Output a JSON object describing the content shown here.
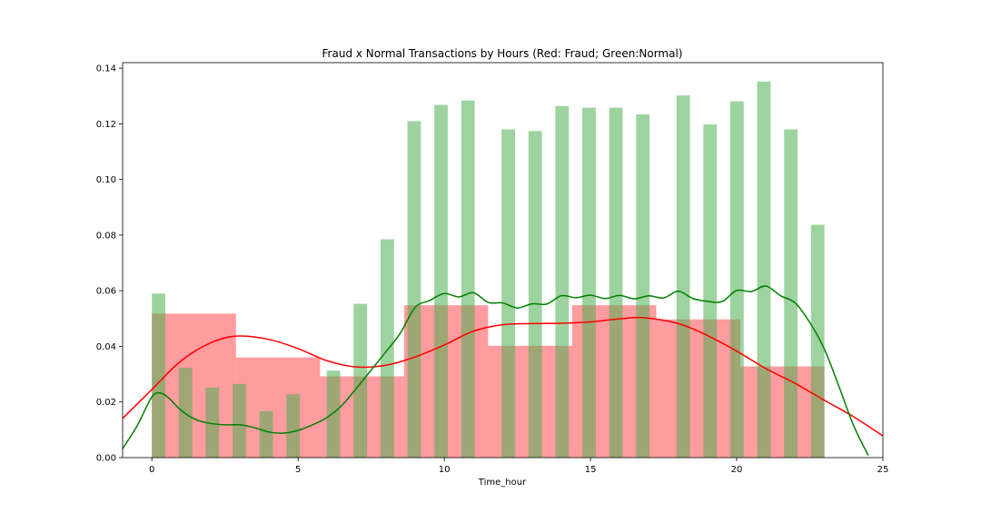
{
  "chart_data": {
    "type": "bar",
    "title": "Fraud x Normal Transactions by Hours (Red: Fraud; Green:Normal)",
    "xlabel": "Time_hour",
    "ylabel": "",
    "xlim": [
      -1,
      25
    ],
    "ylim": [
      0,
      0.142
    ],
    "x_ticks": [
      0,
      5,
      10,
      15,
      20,
      25
    ],
    "x_tick_labels": [
      "0",
      "5",
      "10",
      "15",
      "20",
      "25"
    ],
    "y_ticks": [
      0,
      0.02,
      0.04,
      0.06,
      0.08,
      0.1,
      0.12,
      0.14
    ],
    "y_tick_labels": [
      "0.00",
      "0.02",
      "0.04",
      "0.06",
      "0.08",
      "0.10",
      "0.12",
      "0.14"
    ],
    "grid": false,
    "colors": {
      "fraud_hist": "#ff5a5f",
      "fraud_kde": "#ff0000",
      "normal_hist": "#4caf50",
      "normal_kde": "#008000"
    },
    "series": [
      {
        "kind": "histogram",
        "bins": [
          {
            "x0": 0,
            "x1": 2.875,
            "value": 0.0518
          },
          {
            "x0": 2.875,
            "x1": 5.75,
            "value": 0.036
          },
          {
            "x0": 5.75,
            "x1": 8.625,
            "value": 0.0292
          },
          {
            "x0": 8.625,
            "x1": 11.5,
            "value": 0.0548
          },
          {
            "x0": 11.5,
            "x1": 14.375,
            "value": 0.0402
          },
          {
            "x0": 14.375,
            "x1": 17.25,
            "value": 0.0548
          },
          {
            "x0": 17.25,
            "x1": 20.125,
            "value": 0.0497
          },
          {
            "x0": 20.125,
            "x1": 23,
            "value": 0.0328
          }
        ]
      },
      {
        "kind": "kde",
        "x": [
          -1,
          0,
          1,
          2,
          2.9,
          4,
          5,
          6,
          7,
          8,
          9,
          10,
          11,
          12,
          13,
          14,
          15,
          16,
          16.8,
          18,
          19,
          20,
          21,
          22,
          23,
          24,
          25
        ],
        "y": [
          0.0141,
          0.0245,
          0.0348,
          0.0412,
          0.0437,
          0.0425,
          0.0392,
          0.0348,
          0.0326,
          0.0332,
          0.0362,
          0.0405,
          0.0455,
          0.0478,
          0.0482,
          0.0483,
          0.0488,
          0.0499,
          0.0503,
          0.0482,
          0.0439,
          0.0383,
          0.032,
          0.0267,
          0.0206,
          0.0147,
          0.0078
        ]
      },
      {
        "kind": "histogram",
        "bins": [
          {
            "x0": 0,
            "x1": 0.46,
            "value": 0.059
          },
          {
            "x0": 0.92,
            "x1": 1.38,
            "value": 0.0323
          },
          {
            "x0": 1.84,
            "x1": 2.3,
            "value": 0.0252
          },
          {
            "x0": 2.76,
            "x1": 3.22,
            "value": 0.0265
          },
          {
            "x0": 3.68,
            "x1": 4.14,
            "value": 0.0167
          },
          {
            "x0": 4.6,
            "x1": 5.06,
            "value": 0.0228
          },
          {
            "x0": 5.98,
            "x1": 6.44,
            "value": 0.0313
          },
          {
            "x0": 6.9,
            "x1": 7.36,
            "value": 0.0553
          },
          {
            "x0": 7.82,
            "x1": 8.28,
            "value": 0.0785
          },
          {
            "x0": 8.74,
            "x1": 9.2,
            "value": 0.121
          },
          {
            "x0": 9.66,
            "x1": 10.12,
            "value": 0.1268
          },
          {
            "x0": 10.58,
            "x1": 11.04,
            "value": 0.1284
          },
          {
            "x0": 11.96,
            "x1": 12.42,
            "value": 0.118
          },
          {
            "x0": 12.88,
            "x1": 13.34,
            "value": 0.1174
          },
          {
            "x0": 13.8,
            "x1": 14.26,
            "value": 0.1264
          },
          {
            "x0": 14.72,
            "x1": 15.18,
            "value": 0.1258
          },
          {
            "x0": 15.64,
            "x1": 16.1,
            "value": 0.1258
          },
          {
            "x0": 16.56,
            "x1": 17.02,
            "value": 0.1234
          },
          {
            "x0": 17.94,
            "x1": 18.4,
            "value": 0.1302
          },
          {
            "x0": 18.86,
            "x1": 19.32,
            "value": 0.1198
          },
          {
            "x0": 19.78,
            "x1": 20.24,
            "value": 0.1281
          },
          {
            "x0": 20.7,
            "x1": 21.16,
            "value": 0.1352
          },
          {
            "x0": 21.62,
            "x1": 22.08,
            "value": 0.118
          },
          {
            "x0": 22.54,
            "x1": 23,
            "value": 0.0837
          }
        ]
      },
      {
        "kind": "kde",
        "x": [
          -1,
          -0.5,
          0,
          0.3,
          0.6,
          1,
          1.5,
          2,
          2.5,
          3,
          3.5,
          4,
          4.5,
          5,
          5.5,
          6,
          6.5,
          7,
          7.5,
          8,
          8.5,
          9,
          9.5,
          10,
          10.5,
          11,
          11.5,
          12,
          12.5,
          13,
          13.5,
          14,
          14.5,
          15,
          15.5,
          16,
          16.5,
          17,
          17.5,
          18,
          18.5,
          19,
          19.5,
          20,
          20.5,
          21,
          21.5,
          22,
          22.5,
          23,
          23.5,
          24,
          24.5
        ],
        "y": [
          0.0032,
          0.0115,
          0.0218,
          0.0232,
          0.0212,
          0.017,
          0.0137,
          0.0123,
          0.0118,
          0.0118,
          0.0108,
          0.0092,
          0.0088,
          0.0098,
          0.0118,
          0.0145,
          0.0188,
          0.025,
          0.0315,
          0.038,
          0.0448,
          0.054,
          0.0565,
          0.059,
          0.0578,
          0.0593,
          0.0558,
          0.0556,
          0.0538,
          0.0553,
          0.0552,
          0.0582,
          0.0575,
          0.0584,
          0.0572,
          0.0583,
          0.0571,
          0.0582,
          0.0574,
          0.0598,
          0.0572,
          0.0562,
          0.0561,
          0.0601,
          0.0597,
          0.0617,
          0.0582,
          0.0556,
          0.0486,
          0.039,
          0.0255,
          0.0115,
          0.0008
        ]
      }
    ]
  }
}
